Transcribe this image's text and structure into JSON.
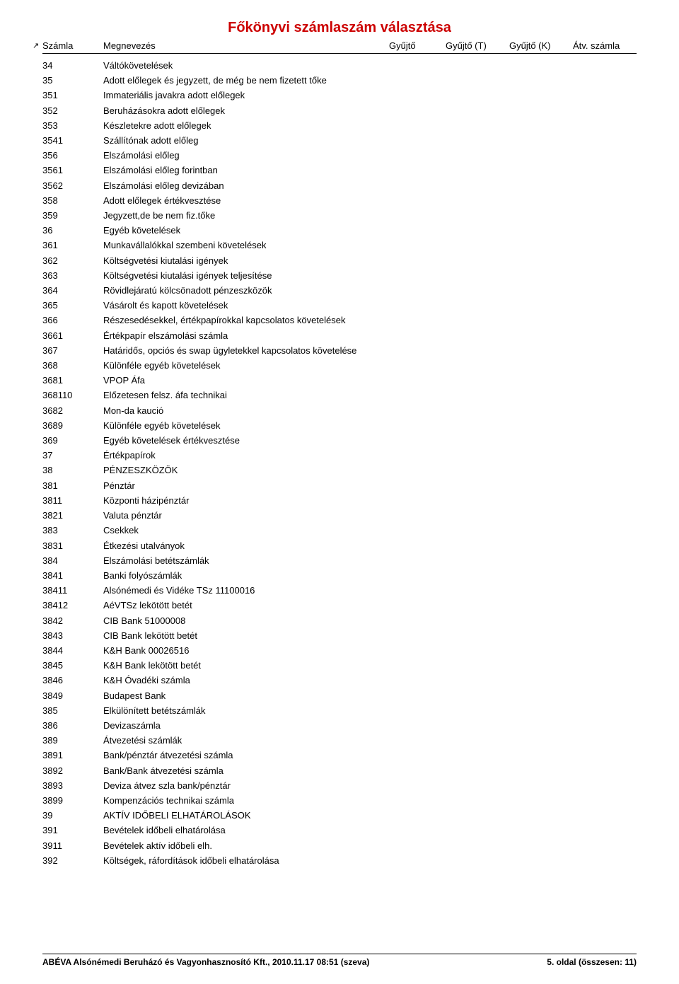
{
  "title": "Főkönyvi számlaszám választása",
  "headers": {
    "szamla": "Számla",
    "megnevezes": "Megnevezés",
    "gyujto": "Gyűjtő",
    "gyujtoT": "Gyűjtő (T)",
    "gyujtoK": "Gyűjtő (K)",
    "atv": "Átv. számla"
  },
  "rows": [
    {
      "code": "34",
      "name": "Váltókövetelések"
    },
    {
      "code": "35",
      "name": "Adott előlegek és jegyzett, de még be nem fizetett tőke"
    },
    {
      "code": "351",
      "name": "Immateriális javakra adott előlegek"
    },
    {
      "code": "352",
      "name": "Beruházásokra adott előlegek"
    },
    {
      "code": "353",
      "name": "Készletekre adott előlegek"
    },
    {
      "code": "3541",
      "name": "Szállítónak adott előleg"
    },
    {
      "code": "356",
      "name": "Elszámolási előleg"
    },
    {
      "code": "3561",
      "name": "Elszámolási előleg forintban"
    },
    {
      "code": "3562",
      "name": "Elszámolási előleg devizában"
    },
    {
      "code": "358",
      "name": "Adott előlegek értékvesztése"
    },
    {
      "code": "359",
      "name": "Jegyzett,de be nem fiz.tőke"
    },
    {
      "code": "36",
      "name": "Egyéb követelések"
    },
    {
      "code": "361",
      "name": "Munkavállalókkal szembeni követelések"
    },
    {
      "code": "362",
      "name": "Költségvetési kiutalási igények"
    },
    {
      "code": "363",
      "name": "Költségvetési kiutalási igények teljesítése"
    },
    {
      "code": "364",
      "name": "Rövidlejáratú kölcsönadott pénzeszközök"
    },
    {
      "code": "365",
      "name": "Vásárolt és kapott követelések"
    },
    {
      "code": "366",
      "name": "Részesedésekkel, értékpapírokkal kapcsolatos követelések"
    },
    {
      "code": "3661",
      "name": "Értékpapír elszámolási számla"
    },
    {
      "code": "367",
      "name": "Határidős, opciós és swap ügyletekkel kapcsolatos követelése"
    },
    {
      "code": "368",
      "name": "Különféle egyéb követelések"
    },
    {
      "code": "3681",
      "name": "VPOP Áfa"
    },
    {
      "code": "368110",
      "name": "Előzetesen felsz. áfa technikai"
    },
    {
      "code": "3682",
      "name": "Mon-da kaució"
    },
    {
      "code": "3689",
      "name": "Különféle egyéb követelések"
    },
    {
      "code": "369",
      "name": "Egyéb követelések értékvesztése"
    },
    {
      "code": "37",
      "name": "Értékpapírok"
    },
    {
      "code": "38",
      "name": "PÉNZESZKÖZÖK"
    },
    {
      "code": "381",
      "name": "Pénztár"
    },
    {
      "code": "3811",
      "name": "Központi házipénztár"
    },
    {
      "code": "3821",
      "name": "Valuta pénztár"
    },
    {
      "code": "383",
      "name": "Csekkek"
    },
    {
      "code": "3831",
      "name": "Étkezési utalványok"
    },
    {
      "code": "384",
      "name": "Elszámolási betétszámlák"
    },
    {
      "code": "3841",
      "name": "Banki folyószámlák"
    },
    {
      "code": "38411",
      "name": "Alsónémedi és Vidéke TSz 11100016"
    },
    {
      "code": "38412",
      "name": "AéVTSz lekötött betét"
    },
    {
      "code": "3842",
      "name": "CIB Bank 51000008"
    },
    {
      "code": "3843",
      "name": "CIB Bank lekötött betét"
    },
    {
      "code": "3844",
      "name": "K&H Bank 00026516"
    },
    {
      "code": "3845",
      "name": "K&H Bank lekötött betét"
    },
    {
      "code": "3846",
      "name": "K&H Óvadéki számla"
    },
    {
      "code": "3849",
      "name": "Budapest Bank"
    },
    {
      "code": "385",
      "name": "Elkülönített betétszámlák"
    },
    {
      "code": "386",
      "name": "Devizaszámla"
    },
    {
      "code": "389",
      "name": "Átvezetési számlák"
    },
    {
      "code": "3891",
      "name": "Bank/pénztár átvezetési számla"
    },
    {
      "code": "3892",
      "name": "Bank/Bank átvezetési számla"
    },
    {
      "code": "3893",
      "name": "Deviza átvez szla bank/pénztár"
    },
    {
      "code": "3899",
      "name": "Kompenzációs technikai számla"
    },
    {
      "code": "39",
      "name": "AKTÍV IDŐBELI ELHATÁROLÁSOK"
    },
    {
      "code": "391",
      "name": "Bevételek időbeli elhatárolása"
    },
    {
      "code": "3911",
      "name": "Bevételek aktív időbeli elh."
    },
    {
      "code": "392",
      "name": "Költségek, ráfordítások időbeli elhatárolása"
    }
  ],
  "footer": {
    "left": "ABÉVA Alsónémedi Beruházó és Vagyonhasznosító Kft., 2010.11.17 08:51 (szeva)",
    "right": "5. oldal (összesen: 11)"
  }
}
